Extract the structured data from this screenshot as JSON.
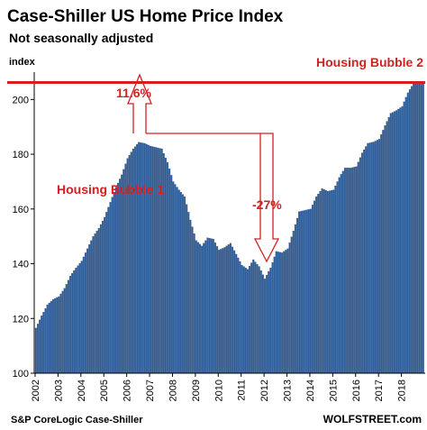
{
  "chart_data": {
    "type": "bar",
    "title": "Case-Shiller US Home Price Index",
    "subtitle": "Not seasonally adjusted",
    "ylabel": "index",
    "ylim": [
      100,
      210
    ],
    "yticks": [
      100,
      120,
      140,
      160,
      180,
      200
    ],
    "xlim": [
      2002.0,
      2019.0
    ],
    "xticks": [
      "2002",
      "2003",
      "2004",
      "2005",
      "2006",
      "2007",
      "2008",
      "2009",
      "2010",
      "2011",
      "2012",
      "2013",
      "2014",
      "2015",
      "2016",
      "2017",
      "2018"
    ],
    "grid": false,
    "bar_color": "#2e5d99",
    "annotation_color": "#d42020",
    "reference_line": {
      "value": 206.2,
      "label": "Housing Bubble 2"
    },
    "annotations": [
      {
        "text": "Housing Bubble 1"
      },
      {
        "text": "11.6%"
      },
      {
        "text": "-27%"
      }
    ],
    "source": "S&P CoreLogic Case-Shiller",
    "brand": "WOLFSTREET.com",
    "anchors": [
      [
        2002.0,
        116.5
      ],
      [
        2002.25,
        121.0
      ],
      [
        2002.5,
        125.0
      ],
      [
        2002.75,
        127.0
      ],
      [
        2003.0,
        128.0
      ],
      [
        2003.25,
        131.0
      ],
      [
        2003.5,
        135.5
      ],
      [
        2003.75,
        138.5
      ],
      [
        2004.0,
        141.0
      ],
      [
        2004.25,
        145.5
      ],
      [
        2004.5,
        150.0
      ],
      [
        2004.75,
        153.0
      ],
      [
        2005.0,
        157.0
      ],
      [
        2005.25,
        162.5
      ],
      [
        2005.5,
        168.0
      ],
      [
        2005.75,
        172.5
      ],
      [
        2006.0,
        178.5
      ],
      [
        2006.25,
        182.0
      ],
      [
        2006.5,
        184.4
      ],
      [
        2006.75,
        184.0
      ],
      [
        2007.0,
        183.0
      ],
      [
        2007.25,
        182.5
      ],
      [
        2007.5,
        182.0
      ],
      [
        2007.75,
        177.0
      ],
      [
        2008.0,
        170.0
      ],
      [
        2008.25,
        167.0
      ],
      [
        2008.5,
        164.5
      ],
      [
        2008.75,
        156.0
      ],
      [
        2009.0,
        148.5
      ],
      [
        2009.25,
        146.5
      ],
      [
        2009.5,
        149.5
      ],
      [
        2009.75,
        149.0
      ],
      [
        2010.0,
        145.0
      ],
      [
        2010.25,
        146.0
      ],
      [
        2010.5,
        147.5
      ],
      [
        2010.75,
        143.5
      ],
      [
        2011.0,
        139.5
      ],
      [
        2011.25,
        138.0
      ],
      [
        2011.5,
        141.5
      ],
      [
        2011.75,
        139.0
      ],
      [
        2012.0,
        134.5
      ],
      [
        2012.25,
        138.5
      ],
      [
        2012.5,
        144.5
      ],
      [
        2012.75,
        144.0
      ],
      [
        2013.0,
        145.5
      ],
      [
        2013.25,
        152.0
      ],
      [
        2013.5,
        159.0
      ],
      [
        2013.75,
        159.5
      ],
      [
        2014.0,
        160.0
      ],
      [
        2014.25,
        164.5
      ],
      [
        2014.5,
        167.5
      ],
      [
        2014.75,
        166.5
      ],
      [
        2015.0,
        167.0
      ],
      [
        2015.25,
        171.5
      ],
      [
        2015.5,
        175.0
      ],
      [
        2015.75,
        175.0
      ],
      [
        2016.0,
        175.5
      ],
      [
        2016.25,
        180.5
      ],
      [
        2016.5,
        184.0
      ],
      [
        2016.75,
        184.5
      ],
      [
        2017.0,
        185.5
      ],
      [
        2017.25,
        190.5
      ],
      [
        2017.5,
        195.0
      ],
      [
        2017.75,
        196.0
      ],
      [
        2018.0,
        197.5
      ],
      [
        2018.25,
        202.5
      ],
      [
        2018.5,
        206.0
      ],
      [
        2018.75,
        206.2
      ]
    ]
  }
}
